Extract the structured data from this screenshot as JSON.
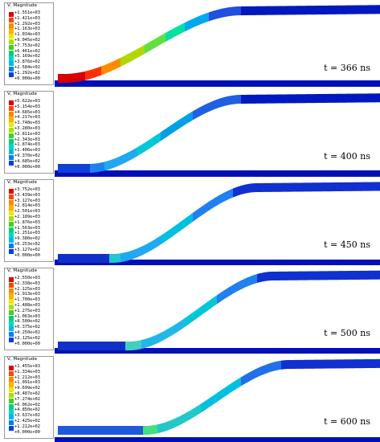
{
  "panels": [
    {
      "time": "t = 366 ns",
      "legend_title": "V, Magnitude",
      "values": [
        "+1.551e+03",
        "+1.421e+03",
        "+1.292e+03",
        "+1.163e+03",
        "+1.034e+03",
        "+9.045e+02",
        "+7.753e+02",
        "+6.461e+02",
        "+5.169e+02",
        "+3.876e+02",
        "+2.584e+02",
        "+1.292e+02",
        "+0.000e+00"
      ]
    },
    {
      "time": "t = 400 ns",
      "legend_title": "V, Magnitude",
      "values": [
        "+5.622e+03",
        "+5.154e+03",
        "+4.685e+03",
        "+4.217e+03",
        "+3.748e+03",
        "+3.280e+03",
        "+2.811e+03",
        "+2.343e+03",
        "+1.874e+03",
        "+1.406e+03",
        "+9.370e+02",
        "+4.685e+02",
        "+0.000e+00"
      ]
    },
    {
      "time": "t = 450 ns",
      "legend_title": "V, Magnitude",
      "values": [
        "+3.752e+03",
        "+3.439e+03",
        "+3.127e+03",
        "+2.814e+03",
        "+2.501e+03",
        "+2.189e+03",
        "+1.876e+03",
        "+1.563e+03",
        "+1.251e+03",
        "+9.380e+02",
        "+6.253e+02",
        "+3.127e+02",
        "+0.000e+00"
      ]
    },
    {
      "time": "t = 500 ns",
      "legend_title": "V, Magnitude",
      "values": [
        "+2.550e+03",
        "+2.338e+03",
        "+2.125e+03",
        "+1.913e+03",
        "+1.700e+03",
        "+1.488e+03",
        "+1.275e+03",
        "+1.063e+03",
        "+8.500e+02",
        "+6.375e+02",
        "+4.250e+02",
        "+2.125e+02",
        "+0.000e+00"
      ]
    },
    {
      "time": "t = 600 ns",
      "legend_title": "V, Magnitude",
      "values": [
        "+1.455e+03",
        "+1.334e+03",
        "+1.212e+03",
        "+1.091e+03",
        "+9.699e+02",
        "+8.487e+02",
        "+7.274e+02",
        "+6.062e+02",
        "+4.850e+02",
        "+3.637e+02",
        "+2.425e+02",
        "+1.212e+02",
        "+0.000e+00"
      ]
    }
  ],
  "legend_colors": [
    "#e00000",
    "#ff4400",
    "#ff8800",
    "#ffb000",
    "#e8e800",
    "#a8e000",
    "#40d020",
    "#00d070",
    "#00d8c0",
    "#00b8e8",
    "#0080f0",
    "#0040e0",
    "#0000c8"
  ]
}
